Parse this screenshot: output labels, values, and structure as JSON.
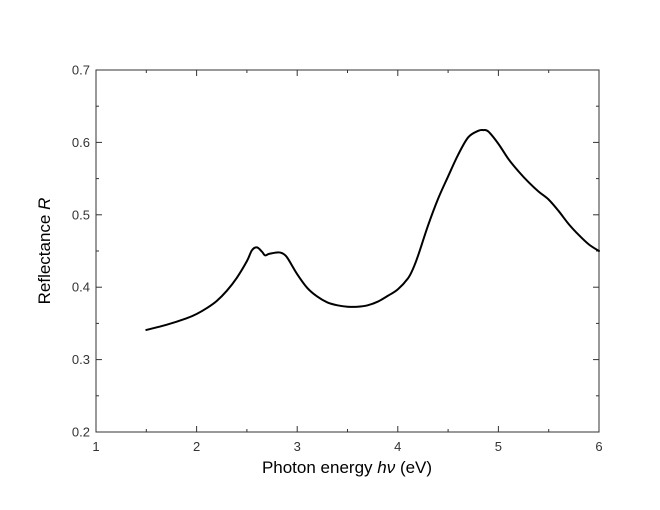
{
  "chart_data": {
    "type": "line",
    "xlabel_parts": {
      "prefix": "Photon energy ",
      "symbol": "hν",
      "suffix": " (eV)"
    },
    "ylabel_parts": {
      "prefix": "Reflectance ",
      "symbol": "R"
    },
    "xlim": [
      1,
      6
    ],
    "ylim": [
      0.2,
      0.7
    ],
    "x_ticks": [
      1,
      2,
      3,
      4,
      5,
      6
    ],
    "x_tick_labels": [
      "1",
      "2",
      "3",
      "4",
      "5",
      "6"
    ],
    "y_ticks": [
      0.2,
      0.3,
      0.4,
      0.5,
      0.6,
      0.7
    ],
    "y_tick_labels": [
      "0.2",
      "0.3",
      "0.4",
      "0.5",
      "0.6",
      "0.7"
    ],
    "grid": false,
    "legend": "none",
    "line_color": "#000000",
    "series": [
      {
        "x": [
          1.5,
          1.7,
          1.9,
          2.0,
          2.1,
          2.2,
          2.3,
          2.4,
          2.5,
          2.55,
          2.6,
          2.65,
          2.68,
          2.72,
          2.8,
          2.85,
          2.9,
          3.0,
          3.1,
          3.2,
          3.3,
          3.4,
          3.5,
          3.6,
          3.7,
          3.8,
          3.9,
          4.0,
          4.1,
          4.15,
          4.2,
          4.3,
          4.4,
          4.5,
          4.6,
          4.7,
          4.8,
          4.85,
          4.9,
          5.0,
          5.1,
          5.2,
          5.3,
          5.4,
          5.5,
          5.6,
          5.7,
          5.8,
          5.9,
          6.0
        ],
        "y": [
          0.341,
          0.348,
          0.357,
          0.363,
          0.371,
          0.381,
          0.395,
          0.413,
          0.436,
          0.451,
          0.455,
          0.449,
          0.444,
          0.446,
          0.448,
          0.447,
          0.441,
          0.418,
          0.399,
          0.387,
          0.379,
          0.375,
          0.373,
          0.373,
          0.375,
          0.38,
          0.388,
          0.397,
          0.412,
          0.425,
          0.443,
          0.485,
          0.522,
          0.553,
          0.583,
          0.607,
          0.616,
          0.617,
          0.615,
          0.598,
          0.577,
          0.56,
          0.545,
          0.532,
          0.521,
          0.505,
          0.487,
          0.472,
          0.459,
          0.45
        ]
      }
    ]
  }
}
